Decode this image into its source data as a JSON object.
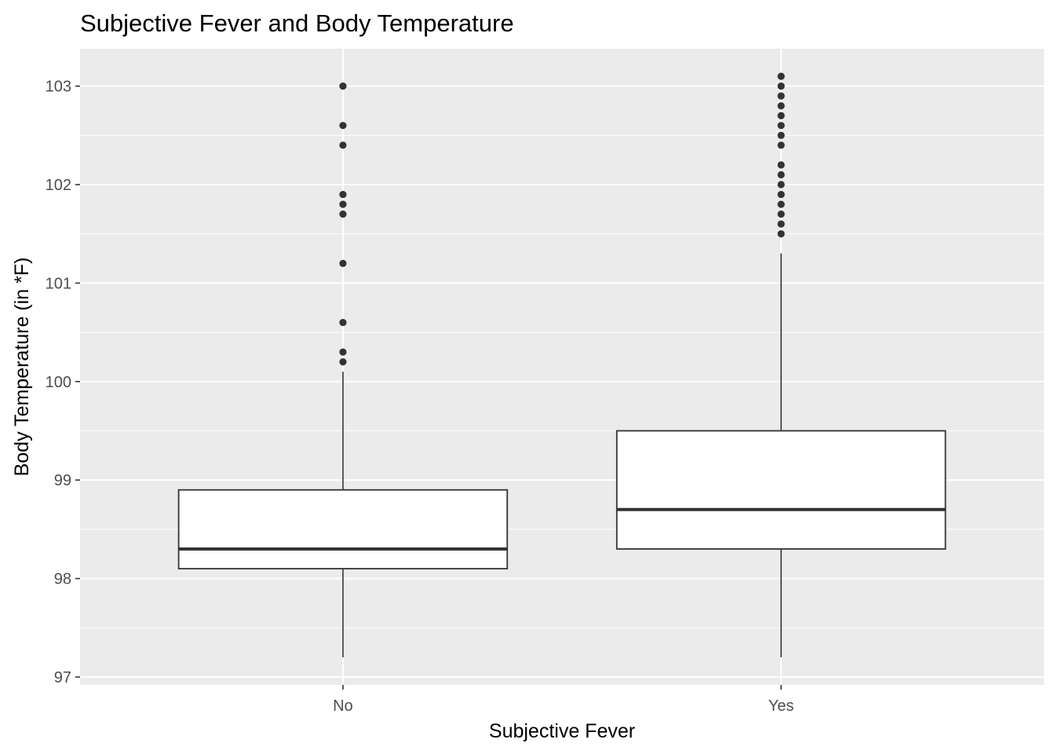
{
  "chart_data": {
    "type": "boxplot",
    "title": "Subjective Fever and Body Temperature",
    "xlabel": "Subjective Fever",
    "ylabel": "Body Temperature (in *F)",
    "categories": [
      "No",
      "Yes"
    ],
    "ylim": [
      96.92,
      103.38
    ],
    "yticks": [
      97,
      98,
      99,
      100,
      101,
      102,
      103
    ],
    "grid": true,
    "boxes": [
      {
        "category": "No",
        "whisker_low": 97.2,
        "q1": 98.1,
        "median": 98.3,
        "q3": 98.9,
        "whisker_high": 100.1,
        "outliers": [
          100.2,
          100.3,
          100.6,
          101.2,
          101.7,
          101.8,
          101.9,
          102.4,
          102.6,
          103.0
        ]
      },
      {
        "category": "Yes",
        "whisker_low": 97.2,
        "q1": 98.3,
        "median": 98.7,
        "q3": 99.5,
        "whisker_high": 101.3,
        "outliers": [
          101.5,
          101.6,
          101.7,
          101.8,
          101.9,
          102.0,
          102.1,
          102.2,
          102.4,
          102.5,
          102.6,
          102.7,
          102.8,
          102.9,
          103.0,
          103.1
        ]
      }
    ],
    "colors": {
      "panel": "#ebebeb",
      "grid": "#ffffff",
      "box_fill": "#ffffff",
      "box_line": "#333333",
      "outlier": "#333333",
      "tick": "#333333"
    }
  }
}
